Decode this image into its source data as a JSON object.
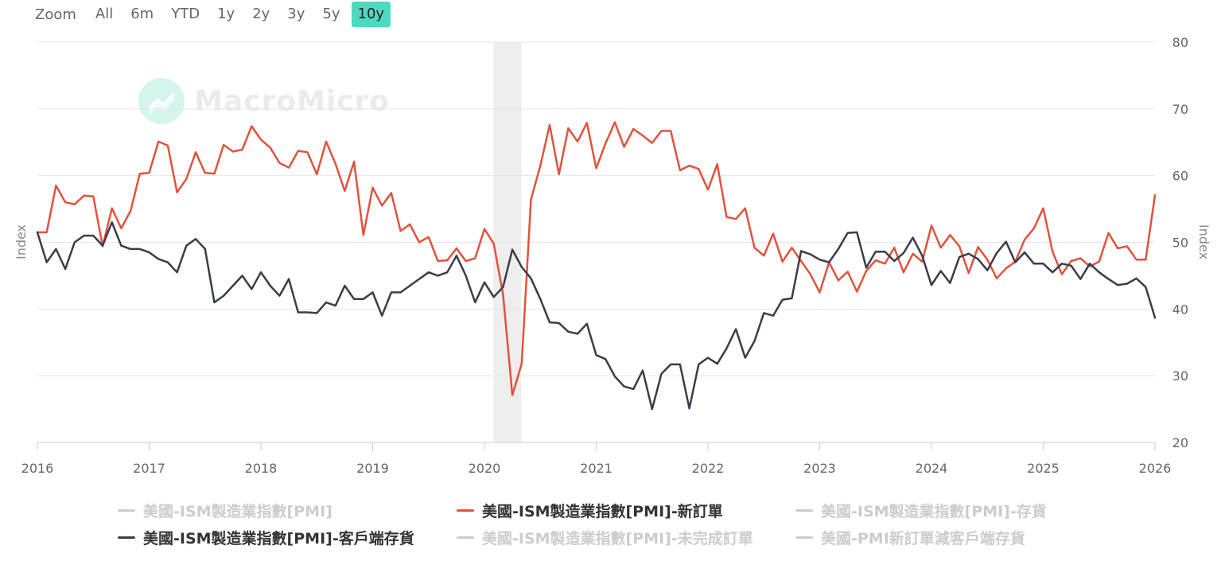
{
  "zoom": {
    "label": "Zoom",
    "buttons": [
      "All",
      "6m",
      "YTD",
      "1y",
      "2y",
      "3y",
      "5y",
      "10y"
    ],
    "active": "10y"
  },
  "watermark": {
    "text": "MacroMicro"
  },
  "chart_data": {
    "type": "line",
    "x_range": [
      2016,
      2026
    ],
    "x_ticks": [
      "2016",
      "2017",
      "2018",
      "2019",
      "2020",
      "2021",
      "2022",
      "2023",
      "2024",
      "2025",
      "2026"
    ],
    "left_axis": {
      "label": "Index"
    },
    "right_axis": {
      "label": "Index",
      "ylim": [
        20,
        80
      ],
      "ticks": [
        "20",
        "30",
        "40",
        "50",
        "60",
        "70",
        "80"
      ]
    },
    "grid": true,
    "recession_band": [
      2020.08,
      2020.33
    ],
    "legend_position": "bottom",
    "colors": {
      "new_orders": "#e0533c",
      "customer_inventories": "#3a3d4a",
      "band": "#eeeeee",
      "grid": "#e6e6e6"
    },
    "series": [
      {
        "name": "美國-ISM製造業指數[PMI]-新訂單",
        "color": "#e0533c",
        "start": 2016,
        "step_months": 1,
        "values": [
          51.5,
          51.5,
          58.5,
          56.0,
          55.7,
          57.0,
          56.9,
          49.4,
          55.1,
          52.1,
          54.7,
          60.3,
          60.4,
          65.1,
          64.5,
          57.5,
          59.5,
          63.5,
          60.4,
          60.3,
          64.6,
          63.6,
          63.9,
          67.4,
          65.4,
          64.2,
          61.9,
          61.2,
          63.7,
          63.5,
          60.2,
          65.1,
          61.8,
          57.7,
          62.1,
          51.1,
          58.2,
          55.5,
          57.4,
          51.7,
          52.7,
          50.0,
          50.8,
          47.2,
          47.3,
          49.1,
          47.2,
          47.6,
          52.0,
          49.8,
          42.2,
          27.1,
          31.8,
          56.4,
          61.5,
          67.6,
          60.2,
          67.1,
          65.1,
          67.9,
          61.1,
          64.8,
          68.0,
          64.3,
          67.0,
          66.0,
          64.9,
          66.7,
          66.7,
          60.8,
          61.5,
          61.0,
          57.9,
          61.7,
          53.8,
          53.5,
          55.1,
          49.2,
          48.0,
          51.3,
          47.1,
          49.2,
          47.2,
          45.2,
          42.5,
          47.0,
          44.3,
          45.6,
          42.6,
          45.7,
          47.3,
          46.8,
          49.2,
          45.5,
          48.3,
          47.1,
          52.5,
          49.2,
          51.1,
          49.4,
          45.4,
          49.3,
          47.4,
          44.6,
          46.1,
          47.1,
          50.4,
          52.1,
          55.1,
          48.6,
          45.2,
          47.2,
          47.6,
          46.4,
          47.1,
          51.4,
          49.1,
          49.4,
          47.4,
          47.4,
          57.1
        ]
      },
      {
        "name": "美國-ISM製造業指數[PMI]-客戶端存貨",
        "color": "#3a3d4a",
        "start": 2016,
        "step_months": 1,
        "values": [
          51.5,
          47.0,
          49.0,
          46.0,
          50.0,
          51.0,
          51.0,
          49.5,
          53.0,
          49.5,
          49.0,
          49.0,
          48.5,
          47.5,
          47.0,
          45.5,
          49.5,
          50.5,
          49.0,
          41.0,
          42.0,
          43.5,
          45.0,
          43.0,
          45.5,
          43.5,
          42.0,
          44.5,
          39.5,
          39.5,
          39.4,
          41.0,
          40.5,
          43.5,
          41.5,
          41.5,
          42.5,
          39.0,
          42.5,
          42.5,
          43.5,
          44.5,
          45.5,
          45.0,
          45.5,
          48.0,
          45.0,
          41.0,
          44.0,
          41.8,
          43.3,
          48.9,
          46.3,
          44.6,
          41.5,
          38.0,
          37.9,
          36.6,
          36.3,
          37.8,
          33.1,
          32.5,
          29.9,
          28.4,
          28.0,
          30.8,
          25.0,
          30.3,
          31.7,
          31.7,
          25.1,
          31.7,
          32.7,
          31.8,
          34.1,
          37.0,
          32.7,
          35.2,
          39.4,
          39.0,
          41.4,
          41.6,
          48.7,
          48.2,
          47.4,
          47.0,
          49.0,
          51.4,
          51.5,
          46.2,
          48.6,
          48.6,
          47.2,
          48.4,
          50.7,
          48.0,
          43.6,
          45.7,
          43.9,
          47.8,
          48.3,
          47.5,
          45.8,
          48.4,
          50.1,
          47.0,
          48.5,
          46.8,
          46.8,
          45.5,
          46.8,
          46.5,
          44.5,
          46.8,
          45.5,
          44.5,
          43.6,
          43.8,
          44.6,
          43.3,
          38.7
        ]
      }
    ]
  },
  "legend": {
    "items": [
      {
        "label": "美國-ISM製造業指數[PMI]",
        "visible": false,
        "color": "#cccccc"
      },
      {
        "label": "美國-ISM製造業指數[PMI]-新訂單",
        "visible": true,
        "color": "#e0533c"
      },
      {
        "label": "美國-ISM製造業指數[PMI]-存貨",
        "visible": false,
        "color": "#cccccc"
      },
      {
        "label": "美國-ISM製造業指數[PMI]-客戶端存貨",
        "visible": true,
        "color": "#3a3d4a"
      },
      {
        "label": "美國-ISM製造業指數[PMI]-未完成訂單",
        "visible": false,
        "color": "#cccccc"
      },
      {
        "label": "美國-PMI新訂單減客戶端存貨",
        "visible": false,
        "color": "#cccccc"
      }
    ]
  }
}
